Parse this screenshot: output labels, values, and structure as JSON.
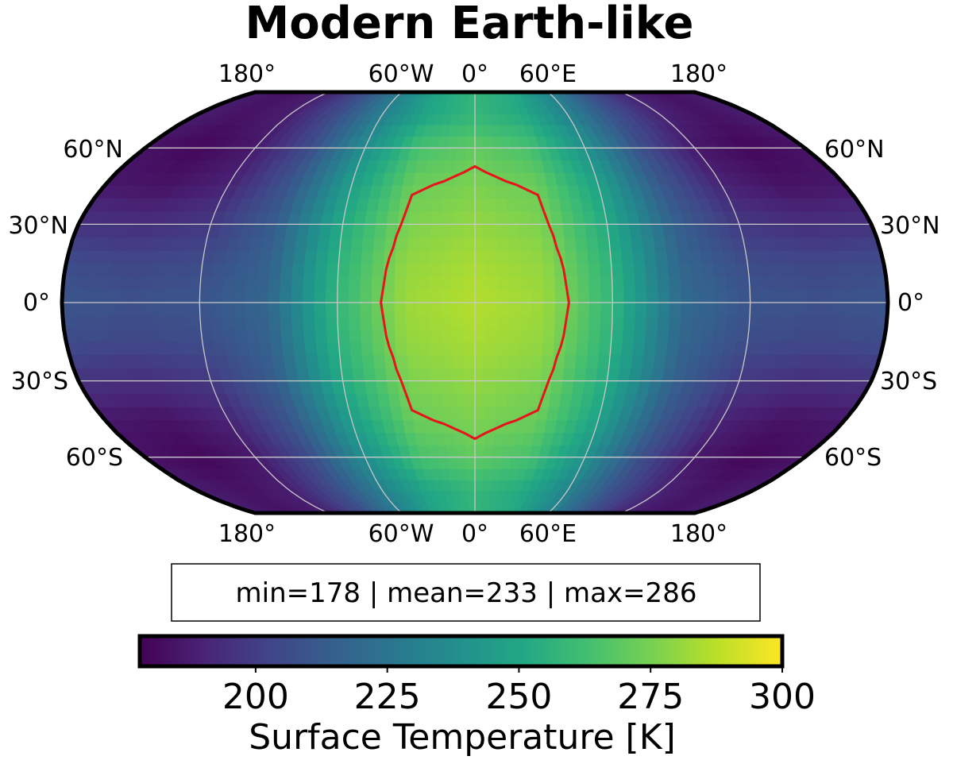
{
  "title": "Modern Earth-like",
  "map": {
    "projection": "Robinson",
    "grid": true,
    "field": "Surface Temperature",
    "units": "K",
    "substellar_longitude": 0,
    "hot_region_threshold_K": 273,
    "contour_color": "#e8141c",
    "top_lon_labels": [
      "180°",
      "60°W",
      "0°",
      "60°E",
      "180°"
    ],
    "bottom_lon_labels": [
      "180°",
      "60°W",
      "0°",
      "60°E",
      "180°"
    ],
    "left_lat_labels": [
      "60°N",
      "30°N",
      "0°",
      "30°S",
      "60°S"
    ],
    "right_lat_labels": [
      "60°N",
      "30°N",
      "0°",
      "30°S",
      "60°S"
    ]
  },
  "stats": {
    "text": "min=178 | mean=233 | max=286",
    "min": 178,
    "mean": 233,
    "max": 286
  },
  "colorbar": {
    "colormap": "viridis",
    "range": [
      178,
      300
    ],
    "ticks": [
      "200",
      "225",
      "250",
      "275",
      "300"
    ],
    "tick_values": [
      200,
      225,
      250,
      275,
      300
    ],
    "label": "Surface Temperature [K]"
  },
  "chart_data": {
    "type": "heatmap",
    "title": "Modern Earth-like",
    "colorbar_label": "Surface Temperature [K]",
    "vmin": 178,
    "vmax": 300,
    "summary": {
      "min": 178,
      "mean": 233,
      "max": 286
    },
    "x_ticks": [
      "180°",
      "60°W",
      "0°",
      "60°E",
      "180°"
    ],
    "y_ticks": [
      "60°N",
      "30°N",
      "0°",
      "30°S",
      "60°S"
    ],
    "longitudes": [
      -180,
      -150,
      -120,
      -90,
      -60,
      -30,
      0,
      30,
      60,
      90,
      120,
      150,
      180
    ],
    "latitudes": [
      75,
      60,
      45,
      30,
      15,
      0,
      -15,
      -30,
      -45,
      -60,
      -75
    ],
    "values_K": [
      [
        188,
        184,
        188,
        206,
        230,
        250,
        258,
        252,
        232,
        208,
        190,
        184,
        188
      ],
      [
        184,
        180,
        186,
        206,
        238,
        264,
        270,
        264,
        240,
        208,
        186,
        180,
        184
      ],
      [
        186,
        184,
        190,
        210,
        246,
        272,
        276,
        272,
        248,
        212,
        190,
        184,
        186
      ],
      [
        196,
        194,
        198,
        214,
        252,
        276,
        280,
        276,
        252,
        216,
        198,
        194,
        196
      ],
      [
        206,
        204,
        206,
        216,
        256,
        280,
        284,
        280,
        256,
        218,
        206,
        204,
        206
      ],
      [
        210,
        208,
        210,
        218,
        258,
        282,
        286,
        282,
        258,
        220,
        210,
        208,
        210
      ],
      [
        206,
        204,
        206,
        216,
        256,
        280,
        284,
        280,
        256,
        218,
        206,
        204,
        206
      ],
      [
        196,
        194,
        198,
        214,
        252,
        276,
        280,
        276,
        252,
        216,
        198,
        194,
        196
      ],
      [
        186,
        184,
        190,
        210,
        246,
        272,
        276,
        272,
        248,
        212,
        190,
        184,
        186
      ],
      [
        184,
        180,
        186,
        206,
        238,
        264,
        270,
        264,
        240,
        208,
        186,
        180,
        184
      ],
      [
        188,
        184,
        188,
        206,
        230,
        250,
        258,
        252,
        232,
        208,
        190,
        184,
        188
      ]
    ]
  }
}
